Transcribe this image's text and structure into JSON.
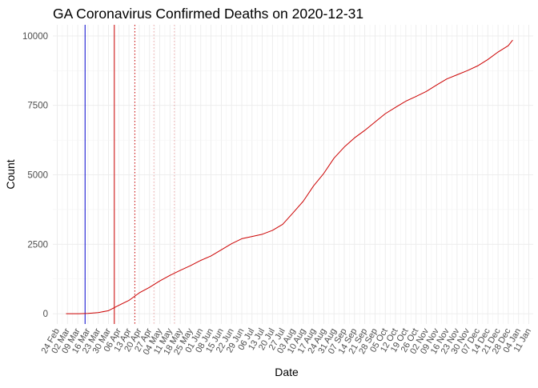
{
  "chart_data": {
    "type": "line",
    "title": "GA Coronavirus Confirmed Deaths on 2020-12-31",
    "xlabel": "Date",
    "ylabel": "Count",
    "xlim": [
      "2020-02-21",
      "2021-01-14"
    ],
    "ylim": [
      -370,
      10400
    ],
    "grid": true,
    "legend": "none",
    "y_ticks": [
      0,
      2500,
      5000,
      7500,
      10000
    ],
    "x_tick_labels": [
      {
        "date": "2020-02-24",
        "label": "24 Feb"
      },
      {
        "date": "2020-03-02",
        "label": "02 Mar"
      },
      {
        "date": "2020-03-09",
        "label": "09 Mar"
      },
      {
        "date": "2020-03-16",
        "label": "16 Mar"
      },
      {
        "date": "2020-03-23",
        "label": "23 Mar"
      },
      {
        "date": "2020-03-30",
        "label": "30 Mar"
      },
      {
        "date": "2020-04-06",
        "label": "06 Apr"
      },
      {
        "date": "2020-04-13",
        "label": "13 Apr"
      },
      {
        "date": "2020-04-20",
        "label": "20 Apr"
      },
      {
        "date": "2020-04-27",
        "label": "27 Apr"
      },
      {
        "date": "2020-05-04",
        "label": "04 May"
      },
      {
        "date": "2020-05-11",
        "label": "11 May"
      },
      {
        "date": "2020-05-18",
        "label": "18 May"
      },
      {
        "date": "2020-05-25",
        "label": "25 May"
      },
      {
        "date": "2020-06-01",
        "label": "01 Jun"
      },
      {
        "date": "2020-06-08",
        "label": "08 Jun"
      },
      {
        "date": "2020-06-15",
        "label": "15 Jun"
      },
      {
        "date": "2020-06-22",
        "label": "22 Jun"
      },
      {
        "date": "2020-06-29",
        "label": "29 Jun"
      },
      {
        "date": "2020-07-06",
        "label": "06 Jul"
      },
      {
        "date": "2020-07-13",
        "label": "13 Jul"
      },
      {
        "date": "2020-07-20",
        "label": "20 Jul"
      },
      {
        "date": "2020-07-27",
        "label": "27 Jul"
      },
      {
        "date": "2020-08-03",
        "label": "03 Aug"
      },
      {
        "date": "2020-08-10",
        "label": "10 Aug"
      },
      {
        "date": "2020-08-17",
        "label": "17 Aug"
      },
      {
        "date": "2020-08-24",
        "label": "24 Aug"
      },
      {
        "date": "2020-08-31",
        "label": "31 Aug"
      },
      {
        "date": "2020-09-07",
        "label": "07 Sep"
      },
      {
        "date": "2020-09-14",
        "label": "14 Sep"
      },
      {
        "date": "2020-09-21",
        "label": "21 Sep"
      },
      {
        "date": "2020-09-28",
        "label": "28 Sep"
      },
      {
        "date": "2020-10-05",
        "label": "05 Oct"
      },
      {
        "date": "2020-10-12",
        "label": "12 Oct"
      },
      {
        "date": "2020-10-19",
        "label": "19 Oct"
      },
      {
        "date": "2020-10-26",
        "label": "26 Oct"
      },
      {
        "date": "2020-11-02",
        "label": "02 Nov"
      },
      {
        "date": "2020-11-09",
        "label": "09 Nov"
      },
      {
        "date": "2020-11-16",
        "label": "16 Nov"
      },
      {
        "date": "2020-11-23",
        "label": "23 Nov"
      },
      {
        "date": "2020-11-30",
        "label": "30 Nov"
      },
      {
        "date": "2020-12-07",
        "label": "07 Dec"
      },
      {
        "date": "2020-12-14",
        "label": "14 Dec"
      },
      {
        "date": "2020-12-21",
        "label": "21 Dec"
      },
      {
        "date": "2020-12-28",
        "label": "28 Dec"
      },
      {
        "date": "2021-01-04",
        "label": "04 Jan"
      },
      {
        "date": "2021-01-11",
        "label": "11 Jan"
      }
    ],
    "reference_lines": [
      {
        "date": "2020-03-14",
        "color": "#0000cc",
        "style": "solid"
      },
      {
        "date": "2020-04-03",
        "color": "#cc0000",
        "style": "solid"
      },
      {
        "date": "2020-04-17",
        "color": "#cc0000",
        "style": "dotted"
      },
      {
        "date": "2020-04-30",
        "color": "#cc0000",
        "style": "dotted-faint"
      },
      {
        "date": "2020-05-14",
        "color": "#cc0000",
        "style": "dotted-faint"
      }
    ],
    "series": [
      {
        "color": "#cc0000",
        "points": [
          {
            "x": "2020-03-01",
            "y": 0
          },
          {
            "x": "2020-03-10",
            "y": 1
          },
          {
            "x": "2020-03-16",
            "y": 10
          },
          {
            "x": "2020-03-23",
            "y": 40
          },
          {
            "x": "2020-03-30",
            "y": 110
          },
          {
            "x": "2020-04-06",
            "y": 300
          },
          {
            "x": "2020-04-13",
            "y": 480
          },
          {
            "x": "2020-04-20",
            "y": 750
          },
          {
            "x": "2020-04-27",
            "y": 950
          },
          {
            "x": "2020-05-04",
            "y": 1180
          },
          {
            "x": "2020-05-11",
            "y": 1380
          },
          {
            "x": "2020-05-18",
            "y": 1560
          },
          {
            "x": "2020-05-25",
            "y": 1730
          },
          {
            "x": "2020-06-01",
            "y": 1920
          },
          {
            "x": "2020-06-08",
            "y": 2080
          },
          {
            "x": "2020-06-15",
            "y": 2300
          },
          {
            "x": "2020-06-22",
            "y": 2520
          },
          {
            "x": "2020-06-29",
            "y": 2700
          },
          {
            "x": "2020-07-06",
            "y": 2780
          },
          {
            "x": "2020-07-13",
            "y": 2860
          },
          {
            "x": "2020-07-20",
            "y": 3000
          },
          {
            "x": "2020-07-27",
            "y": 3220
          },
          {
            "x": "2020-08-03",
            "y": 3630
          },
          {
            "x": "2020-08-10",
            "y": 4050
          },
          {
            "x": "2020-08-17",
            "y": 4600
          },
          {
            "x": "2020-08-24",
            "y": 5050
          },
          {
            "x": "2020-08-31",
            "y": 5600
          },
          {
            "x": "2020-09-07",
            "y": 6000
          },
          {
            "x": "2020-09-14",
            "y": 6330
          },
          {
            "x": "2020-09-21",
            "y": 6600
          },
          {
            "x": "2020-09-28",
            "y": 6900
          },
          {
            "x": "2020-10-05",
            "y": 7200
          },
          {
            "x": "2020-10-12",
            "y": 7430
          },
          {
            "x": "2020-10-19",
            "y": 7650
          },
          {
            "x": "2020-10-26",
            "y": 7820
          },
          {
            "x": "2020-11-02",
            "y": 8000
          },
          {
            "x": "2020-11-09",
            "y": 8230
          },
          {
            "x": "2020-11-16",
            "y": 8450
          },
          {
            "x": "2020-11-23",
            "y": 8600
          },
          {
            "x": "2020-11-30",
            "y": 8750
          },
          {
            "x": "2020-12-07",
            "y": 8920
          },
          {
            "x": "2020-12-14",
            "y": 9150
          },
          {
            "x": "2020-12-21",
            "y": 9420
          },
          {
            "x": "2020-12-28",
            "y": 9650
          },
          {
            "x": "2020-12-31",
            "y": 9850
          }
        ]
      }
    ]
  }
}
